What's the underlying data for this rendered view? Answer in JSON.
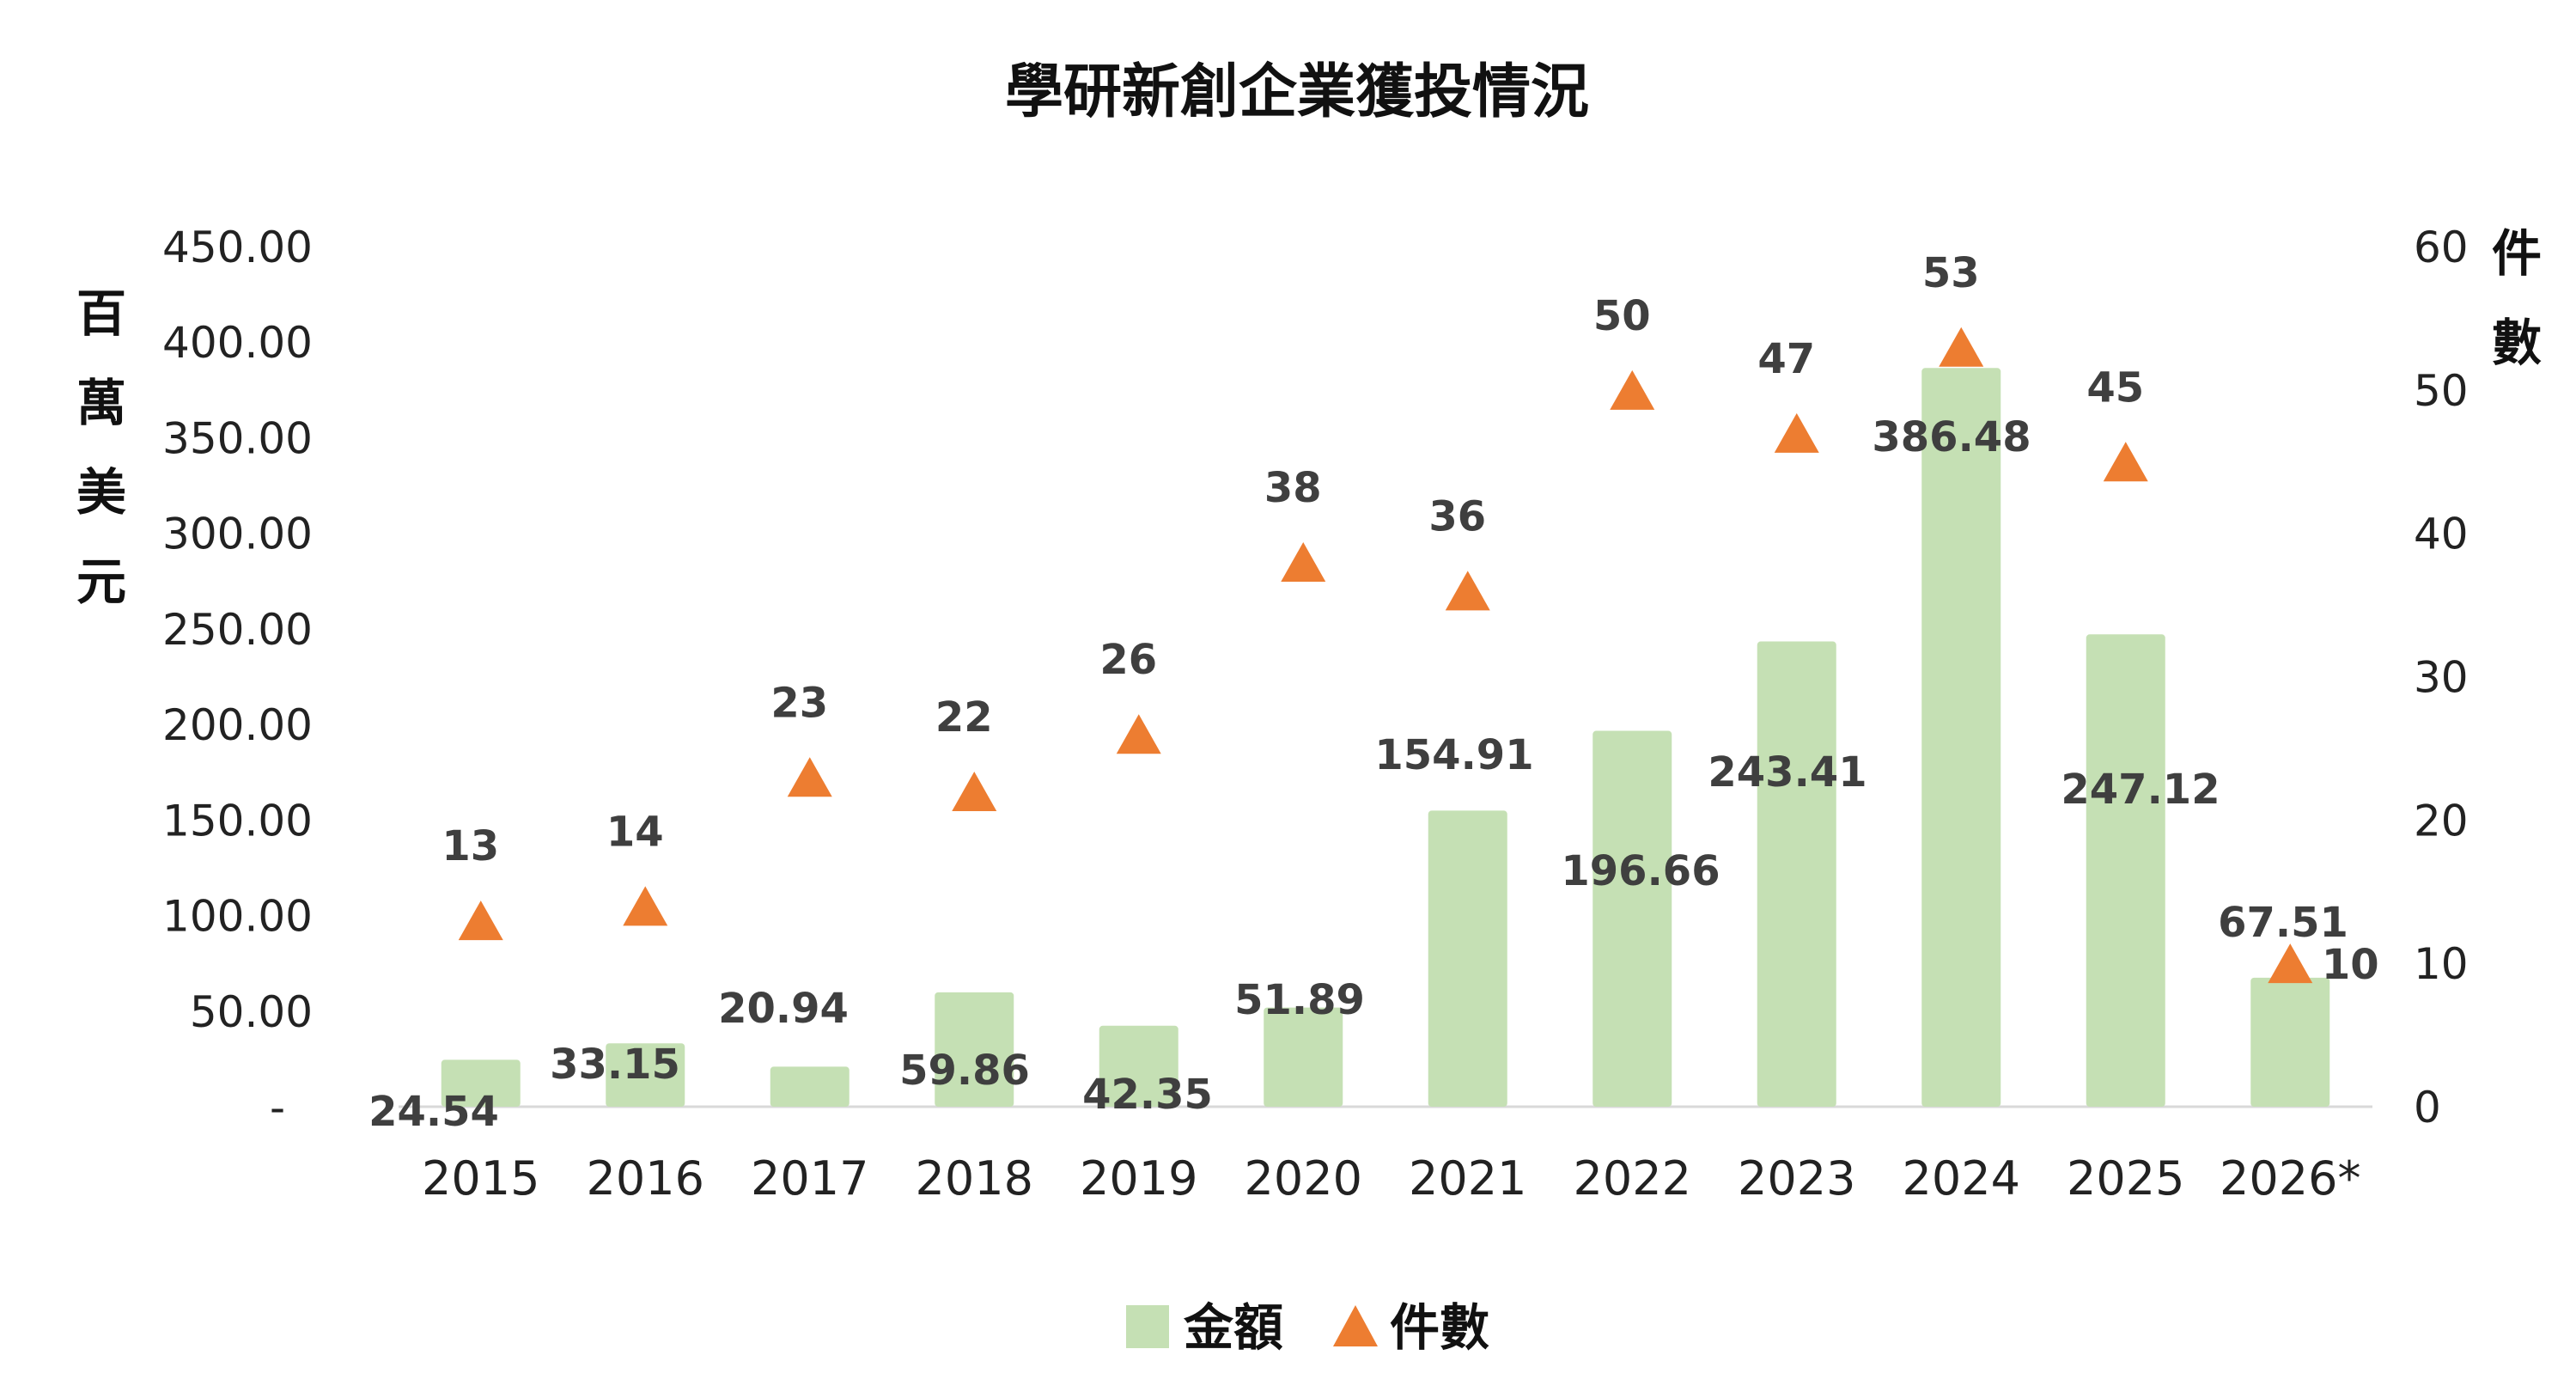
{
  "chart_data": {
    "type": "bar",
    "title": "學研新創企業獲投情況",
    "categories": [
      "2015",
      "2016",
      "2017",
      "2018",
      "2019",
      "2020",
      "2021",
      "2022",
      "2023",
      "2024",
      "2025",
      "2026*"
    ],
    "series": [
      {
        "name": "金額",
        "type": "bar",
        "axis": "left",
        "values": [
          24.54,
          33.15,
          20.94,
          59.86,
          42.35,
          51.89,
          154.91,
          196.66,
          243.41,
          386.48,
          247.12,
          67.51
        ],
        "labels": [
          "24.54",
          "33.15",
          "20.94",
          "59.86",
          "42.35",
          "51.89",
          "154.91",
          "196.66",
          "243.41",
          "386.48",
          "247.12",
          "67.51"
        ],
        "color": "#c5e0b4"
      },
      {
        "name": "件數",
        "type": "scatter",
        "marker": "triangle",
        "axis": "right",
        "values": [
          13,
          14,
          23,
          22,
          26,
          38,
          36,
          50,
          47,
          53,
          45,
          10
        ],
        "color": "#ed7d31"
      }
    ],
    "y_left": {
      "label": "百萬美元",
      "ylim": [
        0,
        450
      ],
      "ticks": [
        "-",
        "50.00",
        "100.00",
        "150.00",
        "200.00",
        "250.00",
        "300.00",
        "350.00",
        "400.00",
        "450.00"
      ],
      "tick_values": [
        0,
        50,
        100,
        150,
        200,
        250,
        300,
        350,
        400,
        450
      ]
    },
    "y_right": {
      "label": "件數",
      "ylim": [
        0,
        60
      ],
      "ticks": [
        "0",
        "10",
        "20",
        "30",
        "40",
        "50",
        "60"
      ],
      "tick_values": [
        0,
        10,
        20,
        30,
        40,
        50,
        60
      ]
    },
    "grid": false,
    "legend": {
      "position": "bottom",
      "items": [
        {
          "name": "金額",
          "marker": "square",
          "color": "#c5e0b4"
        },
        {
          "name": "件數",
          "marker": "triangle",
          "color": "#ed7d31"
        }
      ]
    }
  }
}
